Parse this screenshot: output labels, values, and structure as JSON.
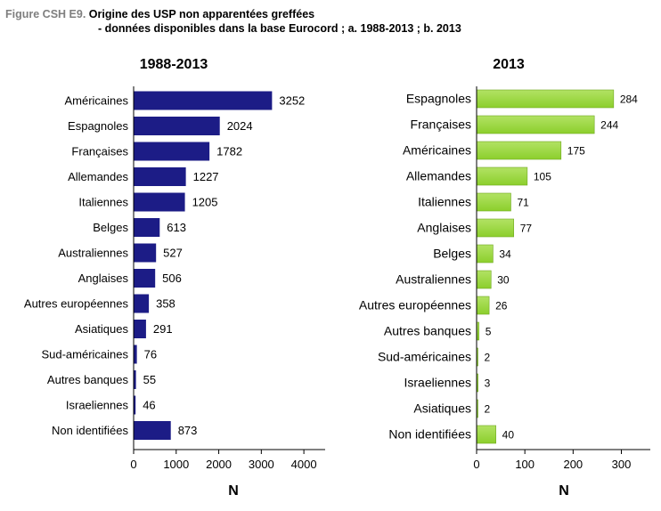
{
  "figure": {
    "label": "Figure CSH E9.",
    "title_line1": "Origine des USP non apparentées greffées",
    "title_line2": "- données disponibles dans la base Eurocord ; a. 1988-2013 ;  b. 2013"
  },
  "colors": {
    "left_bar": "#1c1c86",
    "right_bar": "#8ccf2c",
    "right_bar_light": "#b2e264",
    "axis": "#000000"
  },
  "chart_data": [
    {
      "type": "bar",
      "orientation": "horizontal",
      "title": "1988-2013",
      "xlabel": "N",
      "ylabel": "",
      "xlim": [
        0,
        4500
      ],
      "xticks": [
        0,
        1000,
        2000,
        3000,
        4000
      ],
      "categories": [
        "Américaines",
        "Espagnoles",
        "Françaises",
        "Allemandes",
        "Italiennes",
        "Belges",
        "Australiennes",
        "Anglaises",
        "Autres européennes",
        "Asiatiques",
        "Sud-américaines",
        "Autres banques",
        "Israeliennes",
        "Non identifiées"
      ],
      "values": [
        3252,
        2024,
        1782,
        1227,
        1205,
        613,
        527,
        506,
        358,
        291,
        76,
        55,
        46,
        873
      ],
      "data_labels": true,
      "grid": false,
      "legend": "none"
    },
    {
      "type": "bar",
      "orientation": "horizontal",
      "title": "2013",
      "xlabel": "N",
      "ylabel": "",
      "xlim": [
        0,
        360
      ],
      "xticks": [
        0,
        100,
        200,
        300
      ],
      "categories": [
        "Espagnoles",
        "Françaises",
        "Américaines",
        "Allemandes",
        "Italiennes",
        "Anglaises",
        "Belges",
        "Australiennes",
        "Autres européennes",
        "Autres banques",
        "Sud-américaines",
        "Israeliennes",
        "Asiatiques",
        "Non identifiées"
      ],
      "values": [
        284,
        244,
        175,
        105,
        71,
        77,
        34,
        30,
        26,
        5,
        2,
        3,
        2,
        40
      ],
      "data_labels": true,
      "grid": false,
      "legend": "none"
    }
  ]
}
